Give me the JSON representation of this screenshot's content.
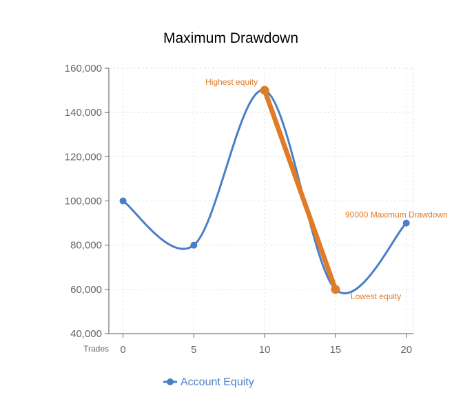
{
  "chart_data": {
    "type": "line",
    "title": "Maximum Drawdown",
    "xlabel": "Trades",
    "ylabel": "",
    "x": [
      0,
      5,
      10,
      15,
      20
    ],
    "xlim": [
      -1,
      20.5
    ],
    "x_ticks": [
      "0",
      "5",
      "10",
      "15",
      "20"
    ],
    "ylim": [
      40000,
      160000
    ],
    "y_ticks": [
      "40,000",
      "60,000",
      "80,000",
      "100,000",
      "120,000",
      "140,000",
      "160,000"
    ],
    "y_tick_values": [
      40000,
      60000,
      80000,
      100000,
      120000,
      140000,
      160000
    ],
    "grid": true,
    "legend_position": "bottom-left",
    "series": [
      {
        "name": "Account Equity",
        "values": [
          100000,
          80000,
          150000,
          60000,
          90000
        ],
        "color": "#4a7ec8",
        "smooth": true
      }
    ],
    "drawdown": {
      "from": [
        10,
        150000
      ],
      "to": [
        15,
        60000
      ],
      "color": "#e07b27"
    },
    "annotations": [
      {
        "text": "Highest equity",
        "x": 10,
        "y": 150000
      },
      {
        "text": "Lowest equity",
        "x": 15,
        "y": 60000
      },
      {
        "text": "90000 Maximum Drawdown",
        "x": 20,
        "y": 90000
      }
    ]
  }
}
